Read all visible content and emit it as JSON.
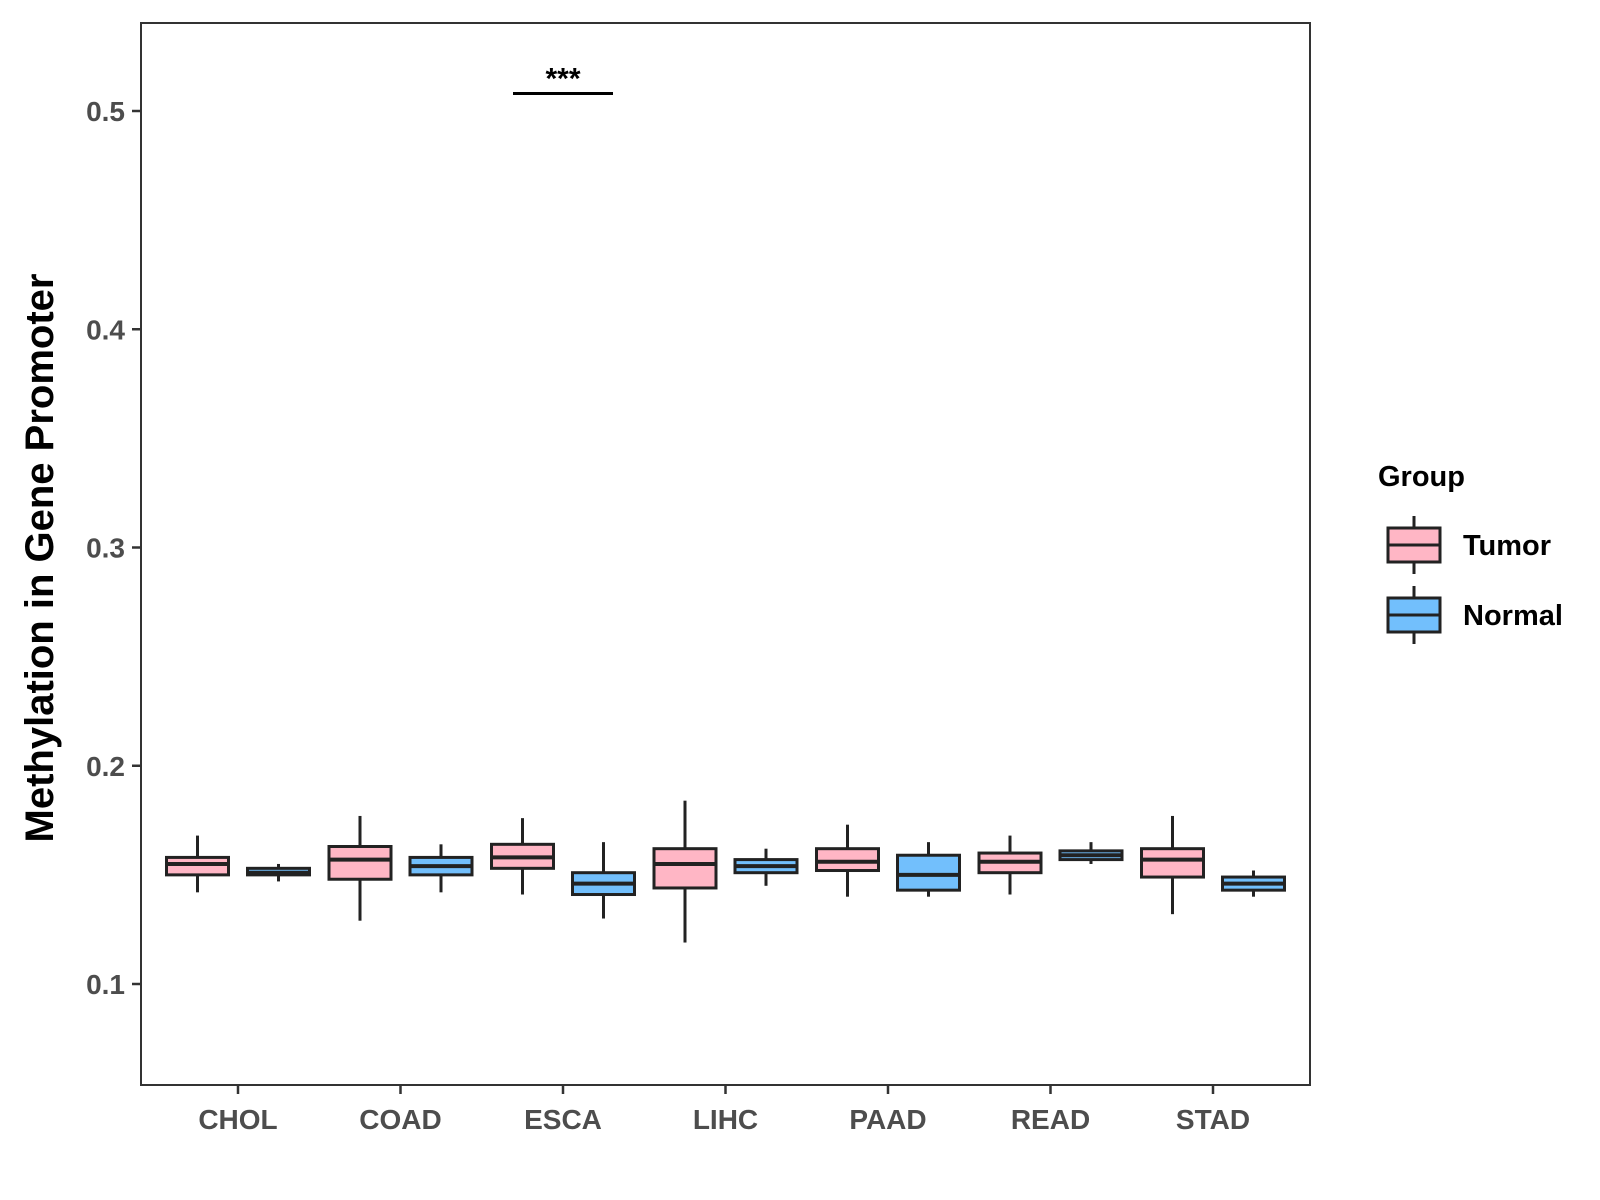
{
  "chart_data": {
    "type": "boxplot",
    "title": "",
    "xlabel": "",
    "ylabel": "Methylation in Gene Promoter",
    "ylim": [
      0.05,
      0.54
    ],
    "yticks": [
      0.1,
      0.2,
      0.3,
      0.4,
      0.5
    ],
    "ytick_labels": [
      "0.1",
      "0.2",
      "0.3",
      "0.4",
      "0.5"
    ],
    "categories": [
      "CHOL",
      "COAD",
      "ESCA",
      "LIHC",
      "PAAD",
      "READ",
      "STAD"
    ],
    "grid": false,
    "legend": {
      "title": "Group",
      "position": "right",
      "entries": [
        "Tumor",
        "Normal"
      ]
    },
    "colors": {
      "Tumor": "#ffb6c5",
      "Normal": "#72bffc",
      "outline": "#222222"
    },
    "series": [
      {
        "name": "Tumor",
        "boxes": [
          {
            "category": "CHOL",
            "min": 0.142,
            "q1": 0.15,
            "median": 0.155,
            "q3": 0.158,
            "max": 0.168
          },
          {
            "category": "COAD",
            "min": 0.129,
            "q1": 0.148,
            "median": 0.157,
            "q3": 0.163,
            "max": 0.177
          },
          {
            "category": "ESCA",
            "min": 0.141,
            "q1": 0.153,
            "median": 0.158,
            "q3": 0.164,
            "max": 0.176
          },
          {
            "category": "LIHC",
            "min": 0.119,
            "q1": 0.144,
            "median": 0.155,
            "q3": 0.162,
            "max": 0.184
          },
          {
            "category": "PAAD",
            "min": 0.14,
            "q1": 0.152,
            "median": 0.156,
            "q3": 0.162,
            "max": 0.173
          },
          {
            "category": "READ",
            "min": 0.141,
            "q1": 0.151,
            "median": 0.156,
            "q3": 0.16,
            "max": 0.168
          },
          {
            "category": "STAD",
            "min": 0.132,
            "q1": 0.149,
            "median": 0.157,
            "q3": 0.162,
            "max": 0.177
          }
        ]
      },
      {
        "name": "Normal",
        "boxes": [
          {
            "category": "CHOL",
            "min": 0.147,
            "q1": 0.15,
            "median": 0.151,
            "q3": 0.153,
            "max": 0.155
          },
          {
            "category": "COAD",
            "min": 0.142,
            "q1": 0.15,
            "median": 0.154,
            "q3": 0.158,
            "max": 0.164
          },
          {
            "category": "ESCA",
            "min": 0.13,
            "q1": 0.141,
            "median": 0.146,
            "q3": 0.151,
            "max": 0.165
          },
          {
            "category": "LIHC",
            "min": 0.145,
            "q1": 0.151,
            "median": 0.154,
            "q3": 0.157,
            "max": 0.162
          },
          {
            "category": "PAAD",
            "min": 0.14,
            "q1": 0.143,
            "median": 0.15,
            "q3": 0.159,
            "max": 0.165
          },
          {
            "category": "READ",
            "min": 0.155,
            "q1": 0.157,
            "median": 0.159,
            "q3": 0.161,
            "max": 0.165
          },
          {
            "category": "STAD",
            "min": 0.14,
            "q1": 0.143,
            "median": 0.146,
            "q3": 0.149,
            "max": 0.152
          }
        ]
      }
    ],
    "annotations": [
      {
        "category": "ESCA",
        "text": "***",
        "y": 0.508
      }
    ]
  }
}
